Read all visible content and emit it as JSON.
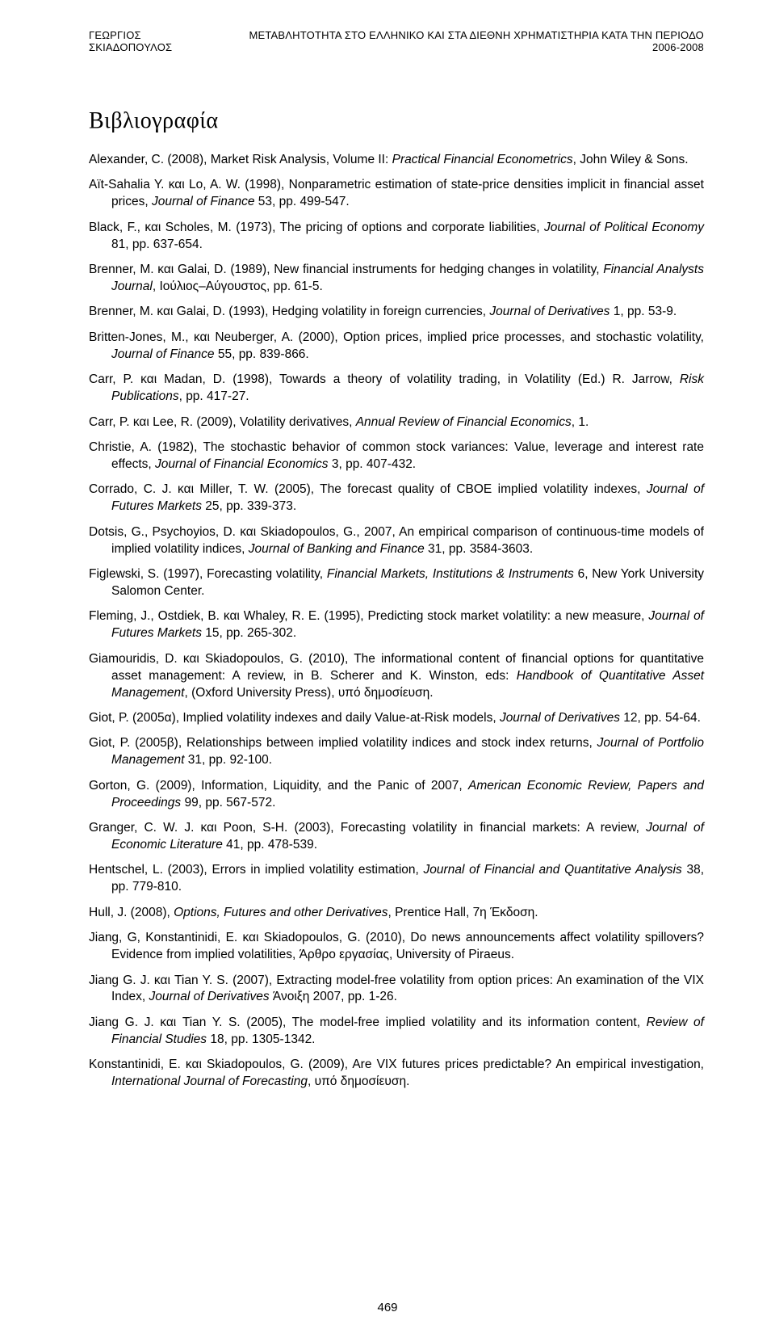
{
  "running_head": {
    "left": "ΓΕΩΡΓΙΟΣ ΣΚΙΑΔΟΠΟΥΛΟΣ",
    "right": "ΜΕΤΑΒΛΗΤΟΤΗΤΑ ΣΤΟ ΕΛΛΗΝΙΚΟ ΚΑΙ ΣΤΑ ΔΙΕΘΝΗ ΧΡΗΜΑΤΙΣΤΗΡΙΑ ΚΑΤΑ ΤΗΝ ΠΕΡΙΟΔΟ 2006-2008"
  },
  "section_title": "Βιβλιογραφία",
  "page_number": "469",
  "refs": [
    {
      "pre": "Alexander, C. (2008), Market Risk Analysis, Volume II: ",
      "it": "Practical Financial Econometrics",
      "post": ", John Wiley & Sons."
    },
    {
      "pre": "Aït-Sahalia Y. και Lo, A. W. (1998), Nonparametric estimation of state-price densities implicit in financial asset prices, ",
      "it": "Journal of Finance",
      "post": " 53, pp. 499-547."
    },
    {
      "pre": "Black, F., και Scholes, M. (1973), The pricing of options and corporate liabilities, ",
      "it": "Journal of Political Economy",
      "post": " 81, pp. 637-654."
    },
    {
      "pre": "Brenner, M. και Galai, D. (1989), New financial instruments for hedging changes in volatility, ",
      "it": "Financial Analysts Journal",
      "post": ", Ιούλιος–Αύγουστος, pp. 61-5."
    },
    {
      "pre": "Brenner, M. και Galai, D. (1993), Hedging volatility in foreign currencies, ",
      "it": "Journal of Derivatives",
      "post": " 1, pp. 53-9."
    },
    {
      "pre": "Britten-Jones, M., και Neuberger, A. (2000), Option prices, implied price processes, and stochastic volatility, ",
      "it": "Journal of Finance",
      "post": " 55, pp. 839-866."
    },
    {
      "pre": "Carr, P. και Madan, D. (1998), Towards a theory of volatility trading, in Volatility (Ed.) R. Jarrow, ",
      "it": "Risk Publications",
      "post": ", pp. 417-27."
    },
    {
      "pre": "Carr, P. και Lee, R. (2009), Volatility derivatives, ",
      "it": "Annual Review of Financial Economics",
      "post": ", 1."
    },
    {
      "pre": "Christie, A. (1982), The stochastic behavior of common stock variances: Value, leverage and interest rate effects, ",
      "it": "Journal of Financial Economics",
      "post": " 3, pp. 407-432."
    },
    {
      "pre": "Corrado, C. J. και Miller, T. W. (2005), The forecast quality of CBOE implied volatility indexes, ",
      "it": "Journal of Futures Markets",
      "post": " 25, pp. 339-373."
    },
    {
      "pre": "Dotsis, G., Psychoyios, D. και Skiadopoulos, G., 2007, An empirical comparison of continuous-time models of implied volatility indices, ",
      "it": "Journal of Banking and Finance",
      "post": " 31, pp. 3584-3603."
    },
    {
      "pre": "Figlewski, S. (1997), Forecasting volatility, ",
      "it": "Financial Markets, Institutions & Instruments",
      "post": " 6, New York University Salomon Center."
    },
    {
      "pre": "Fleming, J., Ostdiek, B. και Whaley, R. E. (1995), Predicting stock market volatility: a new measure, ",
      "it": "Journal of Futures Markets",
      "post": " 15, pp. 265-302."
    },
    {
      "pre": "Giamouridis, D. και Skiadopoulos, G. (2010), The informational content of financial options for quantitative asset management: A review, in B. Scherer and K. Winston, eds: ",
      "it": "Handbook of Quantitative Asset Management",
      "post": ", (Oxford University Press), υπό δημοσίευση."
    },
    {
      "pre": "Giot, P. (2005α), Implied volatility indexes and daily Value-at-Risk models, ",
      "it": "Journal of Derivatives",
      "post": " 12, pp. 54-64."
    },
    {
      "pre": "Giot, P. (2005β), Relationships between implied volatility indices and stock index returns, ",
      "it": "Journal of Portfolio Management",
      "post": " 31, pp. 92-100."
    },
    {
      "pre": "Gorton, G. (2009), Information, Liquidity, and the Panic of 2007, ",
      "it": "American Economic Review, Papers and Proceedings",
      "post": " 99, pp. 567-572."
    },
    {
      "pre": "Granger, C. W. J. και Poon, S-H. (2003), Forecasting volatility in financial markets: A review, ",
      "it": "Journal of Economic Literature",
      "post": " 41, pp. 478-539."
    },
    {
      "pre": "Hentschel, L. (2003), Errors in implied volatility estimation, ",
      "it": "Journal of Financial and Quantitative Analysis",
      "post": " 38, pp. 779-810."
    },
    {
      "pre": "Hull, J. (2008), ",
      "it": "Options, Futures and other Derivatives",
      "post": ", Prentice Hall, 7η Έκδοση."
    },
    {
      "pre": "Jiang, G, Konstantinidi, E. και Skiadopoulos, G. (2010), Do news announcements affect volatility spillovers? Evidence from implied volatilities, Άρθρο εργασίας, University of Piraeus.",
      "it": "",
      "post": ""
    },
    {
      "pre": "Jiang G. J. και Tian Y. S. (2007), Extracting model-free volatility from option prices: An examination of the VIX Index, ",
      "it": "Journal of Derivatives",
      "post": " Άνοιξη 2007, pp. 1-26."
    },
    {
      "pre": "Jiang G. J. και Tian Y. S. (2005), The model-free implied volatility and its information content, ",
      "it": "Review of Financial Studies",
      "post": " 18, pp. 1305-1342."
    },
    {
      "pre": "Konstantinidi, E. και Skiadopoulos, G. (2009), Are VIX futures prices predictable? An empirical investigation, ",
      "it": "International Journal of Forecasting",
      "post": ", υπό δημοσίευση."
    }
  ]
}
